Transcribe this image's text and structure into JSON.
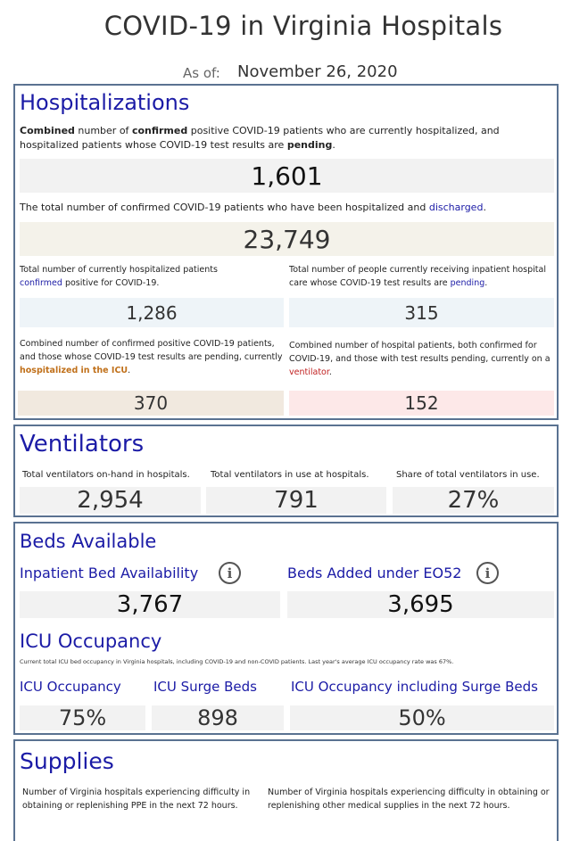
{
  "title": "COVID-19 in Virginia Hospitals",
  "asof": {
    "label": "As of:",
    "date": "November 26, 2020"
  },
  "hospitalizations": {
    "heading": "Hospitalizations",
    "desc_parts": [
      "Combined",
      " number of ",
      "confirmed",
      " positive COVID-19 patients who are currently hospitalized, and hospitalized patients whose COVID-19 test results are ",
      "pending",
      "."
    ],
    "combined_value": "1,601",
    "discharged_desc_pre": "The total number of confirmed COVID-19 patients who have been hospitalized and ",
    "discharged_word": "discharged",
    "discharged_desc_post": ".",
    "discharged_value": "23,749",
    "confirmed_desc_pre": "Total number of currently hospitalized patients",
    "confirmed_word": "confirmed",
    "confirmed_desc_post": " positive for COVID-19.",
    "confirmed_value": "1,286",
    "pending_desc_pre": "Total number of people currently receiving inpatient hospital care whose COVID-19 test results are ",
    "pending_word": "pending",
    "pending_desc_post": ".",
    "pending_value": "315",
    "icu_desc_pre": "Combined number of confirmed positive COVID-19 patients, and those whose COVID-19 test results are pending, currently",
    "icu_word": "hospitalized in the ICU",
    "icu_desc_post": ".",
    "icu_value": "370",
    "vent_desc_pre": "Combined number of hospital patients, both confirmed for COVID-19, and those with test results pending, currently on a",
    "vent_word": "ventilator",
    "vent_desc_post": ".",
    "vent_value": "152"
  },
  "ventilators": {
    "heading": "Ventilators",
    "items": [
      {
        "label": "Total ventilators on-hand in hospitals.",
        "value": "2,954"
      },
      {
        "label": "Total ventilators in use at hospitals.",
        "value": "791"
      },
      {
        "label": "Share of total ventilators in use.",
        "value": "27%"
      }
    ]
  },
  "beds": {
    "heading": "Beds Available",
    "inpatient_label": "Inpatient Bed Availability",
    "inpatient_value": "3,767",
    "eo52_label": "Beds Added under EO52",
    "eo52_value": "3,695",
    "icu_heading": "ICU Occupancy",
    "icu_note": "Current total ICU bed occupancy in Virginia hospitals, including COVID-19 and non-COVID patients. Last year's average ICU occupancy rate was 67%.",
    "icu_items": [
      {
        "label": "ICU Occupancy",
        "value": "75%"
      },
      {
        "label": "ICU Surge Beds",
        "value": "898"
      },
      {
        "label": "ICU Occupancy including Surge Beds",
        "value": "50%"
      }
    ]
  },
  "supplies": {
    "heading": "Supplies",
    "ppe_desc": "Number of Virginia hospitals experiencing difficulty in obtaining or replenishing PPE in the next 72 hours.",
    "other_desc": "Number of Virginia hospitals experiencing difficulty in obtaining or replenishing other medical supplies in the next 72 hours."
  },
  "icons": {
    "info": "info-icon"
  }
}
